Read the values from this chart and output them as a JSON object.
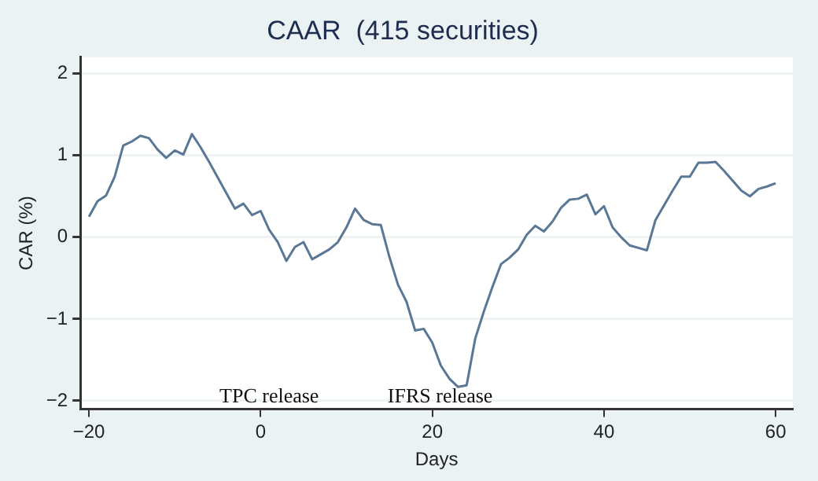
{
  "chart_data": {
    "type": "line",
    "title": "CAAR  (415 securities)",
    "xlabel": "Days",
    "ylabel": "CAR (%)",
    "x": [
      -20,
      -19,
      -18,
      -17,
      -16,
      -15,
      -14,
      -13,
      -12,
      -11,
      -10,
      -9,
      -8,
      -7,
      -6,
      -5,
      -4,
      -3,
      -2,
      -1,
      0,
      1,
      2,
      3,
      4,
      5,
      6,
      7,
      8,
      9,
      10,
      11,
      12,
      13,
      14,
      15,
      16,
      17,
      18,
      19,
      20,
      21,
      22,
      23,
      24,
      25,
      26,
      27,
      28,
      29,
      30,
      31,
      32,
      33,
      34,
      35,
      36,
      37,
      38,
      39,
      40,
      41,
      42,
      43,
      44,
      45,
      46,
      47,
      48,
      49,
      50,
      51,
      52,
      53,
      54,
      55,
      56,
      57,
      58,
      59,
      60
    ],
    "series": [
      {
        "color": "#5a7896",
        "values": [
          0.25,
          0.44,
          0.51,
          0.74,
          1.12,
          1.17,
          1.24,
          1.21,
          1.07,
          0.97,
          1.06,
          1.01,
          1.26,
          1.1,
          0.92,
          0.73,
          0.54,
          0.35,
          0.41,
          0.27,
          0.32,
          0.09,
          -0.06,
          -0.29,
          -0.12,
          -0.06,
          -0.27,
          -0.21,
          -0.15,
          -0.06,
          0.12,
          0.35,
          0.21,
          0.16,
          0.15,
          -0.24,
          -0.58,
          -0.79,
          -1.14,
          -1.12,
          -1.29,
          -1.57,
          -1.73,
          -1.83,
          -1.81,
          -1.24,
          -0.91,
          -0.61,
          -0.33,
          -0.25,
          -0.15,
          0.03,
          0.14,
          0.07,
          0.19,
          0.36,
          0.46,
          0.47,
          0.52,
          0.28,
          0.38,
          0.12,
          0,
          -0.1,
          -0.13,
          -0.16,
          0.21,
          0.39,
          0.57,
          0.74,
          0.74,
          0.91,
          0.91,
          0.92,
          0.81,
          0.69,
          0.57,
          0.5,
          0.59,
          0.62,
          0.66
        ]
      }
    ],
    "xlim": [
      -21,
      62
    ],
    "xticks": [
      -20,
      0,
      20,
      40,
      60
    ],
    "ylim": [
      -2.1,
      2.2
    ],
    "yticks": [
      -2,
      -1,
      0,
      1,
      2
    ],
    "grid": "y",
    "legend": false,
    "marker": "none",
    "line_style": "solid",
    "annotations": [
      "TPC release",
      "IFRS release"
    ]
  }
}
